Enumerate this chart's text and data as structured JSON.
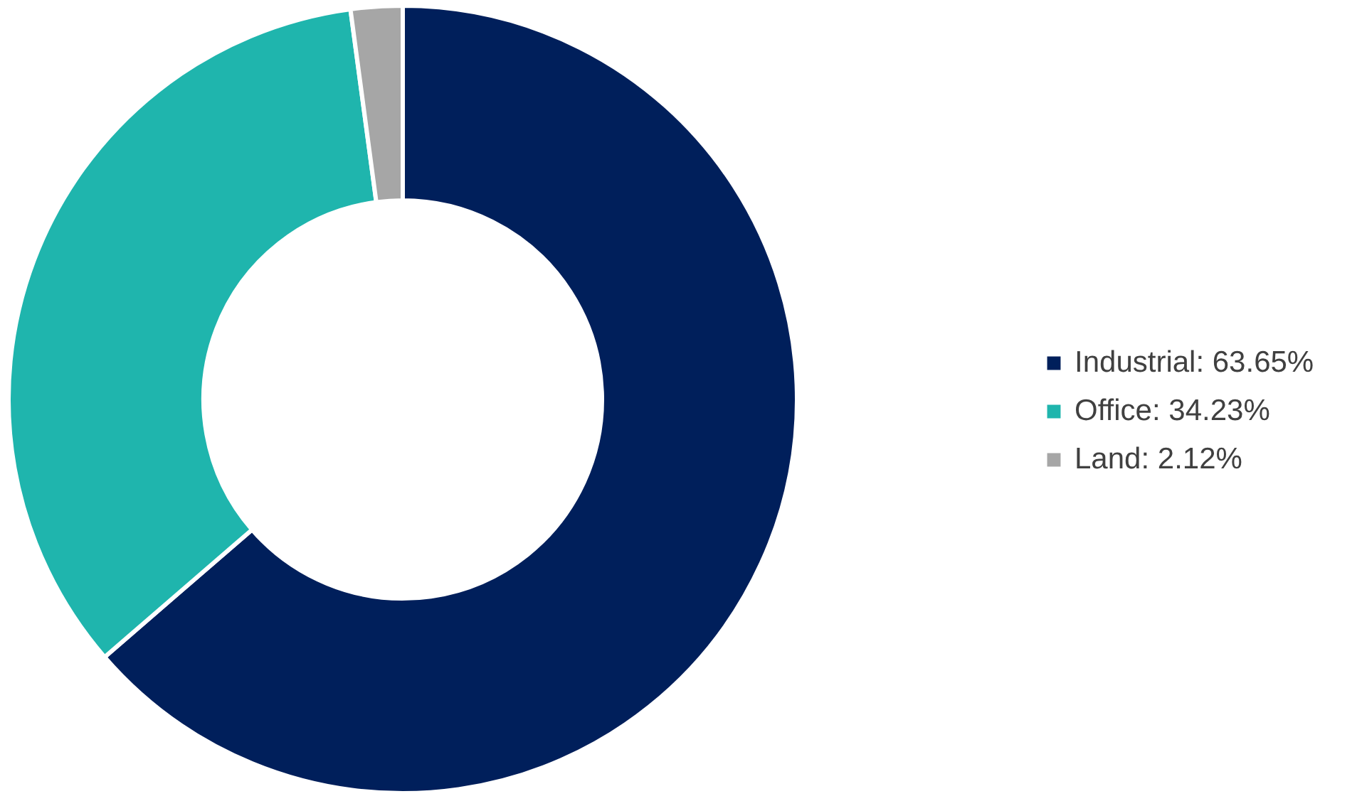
{
  "chart_data": {
    "type": "donut",
    "categories": [
      "Industrial: 63.65%",
      "Office: 34.23%",
      "Land: 2.12%"
    ],
    "values": [
      63.65,
      34.23,
      2.12
    ],
    "colors": [
      "#001f5b",
      "#1fb5ad",
      "#a6a6a6"
    ],
    "legend": "right"
  }
}
